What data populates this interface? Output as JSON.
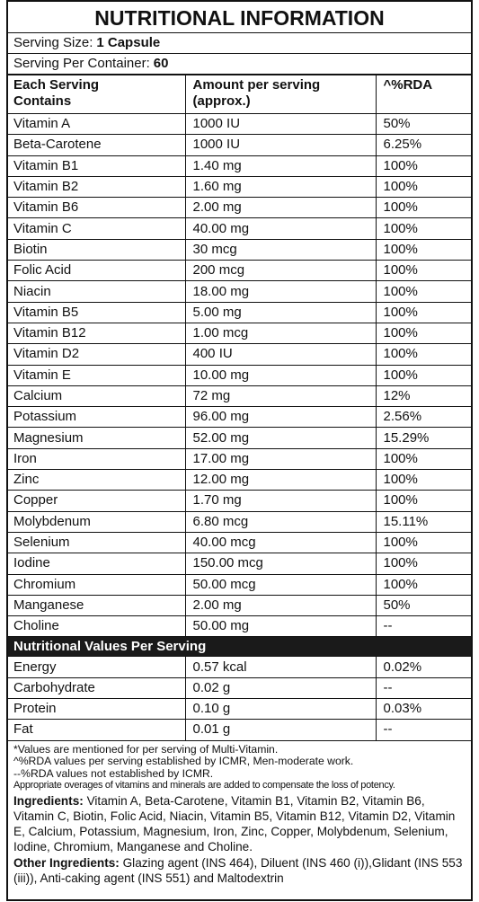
{
  "title": "NUTRITIONAL INFORMATION",
  "serving_size": {
    "label": "Serving Size:",
    "value": "1 Capsule"
  },
  "servings_per_container": {
    "label": "Serving Per Container:",
    "value": "60"
  },
  "table": {
    "headers": [
      "Each Serving Contains",
      "Amount per serving (approx.)",
      "^%RDA"
    ],
    "rows": [
      [
        "Vitamin A",
        "1000 IU",
        "50%"
      ],
      [
        "Beta-Carotene",
        "1000 IU",
        "6.25%"
      ],
      [
        "Vitamin B1",
        "1.40 mg",
        "100%"
      ],
      [
        "Vitamin B2",
        "1.60 mg",
        "100%"
      ],
      [
        "Vitamin B6",
        "2.00 mg",
        "100%"
      ],
      [
        "Vitamin C",
        "40.00 mg",
        "100%"
      ],
      [
        "Biotin",
        "30 mcg",
        "100%"
      ],
      [
        "Folic Acid",
        "200 mcg",
        "100%"
      ],
      [
        "Niacin",
        "18.00 mg",
        "100%"
      ],
      [
        "Vitamin B5",
        "5.00 mg",
        "100%"
      ],
      [
        "Vitamin B12",
        "1.00 mcg",
        "100%"
      ],
      [
        "Vitamin D2",
        "400 IU",
        "100%"
      ],
      [
        "Vitamin E",
        "10.00 mg",
        "100%"
      ],
      [
        "Calcium",
        "72 mg",
        "12%"
      ],
      [
        "Potassium",
        "96.00 mg",
        "2.56%"
      ],
      [
        "Magnesium",
        "52.00 mg",
        "15.29%"
      ],
      [
        "Iron",
        "17.00 mg",
        "100%"
      ],
      [
        "Zinc",
        "12.00 mg",
        "100%"
      ],
      [
        "Copper",
        "1.70 mg",
        "100%"
      ],
      [
        "Molybdenum",
        "6.80 mcg",
        "15.11%"
      ],
      [
        "Selenium",
        "40.00 mcg",
        "100%"
      ],
      [
        "Iodine",
        "150.00 mcg",
        "100%"
      ],
      [
        "Chromium",
        "50.00 mcg",
        "100%"
      ],
      [
        "Manganese",
        "2.00 mg",
        "50%"
      ],
      [
        "Choline",
        "50.00 mg",
        "--"
      ]
    ]
  },
  "nutritional_values": {
    "title": "Nutritional Values Per Serving",
    "rows": [
      [
        "Energy",
        "0.57 kcal",
        "0.02%"
      ],
      [
        "Carbohydrate",
        "0.02 g",
        "--"
      ],
      [
        "Protein",
        "0.10 g",
        "0.03%"
      ],
      [
        "Fat",
        "0.01 g",
        "--"
      ]
    ]
  },
  "notes": [
    "*Values are mentioned for per serving of Multi-Vitamin.",
    "^%RDA values per serving established by ICMR, Men-moderate work.",
    "--%RDA values not established by ICMR.",
    "Appropriate overages of vitamins and minerals are added to compensate the loss of potency."
  ],
  "ingredients": {
    "label": "Ingredients:",
    "text": "Vitamin A, Beta-Carotene, Vitamin B1, Vitamin B2, Vitamin B6, Vitamin C, Biotin, Folic Acid, Niacin, Vitamin B5, Vitamin B12, Vitamin D2, Vitamin E, Calcium, Potassium, Magnesium, Iron, Zinc, Copper, Molybdenum, Selenium, Iodine, Chromium, Manganese and Choline."
  },
  "other_ingredients": {
    "label": "Other Ingredients:",
    "text": "Glazing agent (INS 464), Diluent (INS 460 (i)),Glidant (INS 553 (iii)), Anti-caking agent (INS 551) and Maltodextrin"
  }
}
